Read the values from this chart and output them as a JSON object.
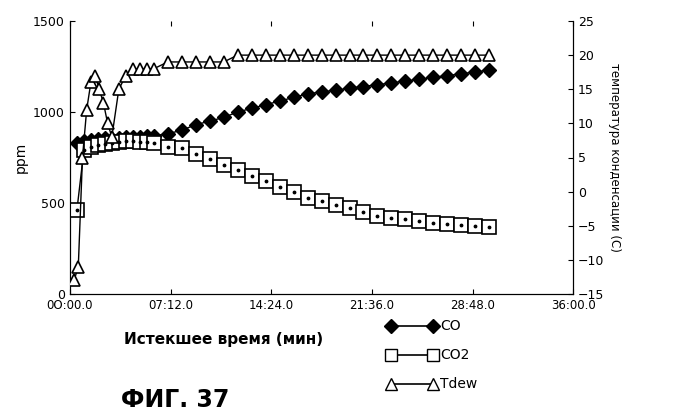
{
  "title": "ФИГ. 37",
  "xlabel": "Истекшее время (мин)",
  "ylabel_left": "ppm",
  "ylabel_right": "температура конденсации (С)",
  "xlim": [
    0,
    36
  ],
  "ylim_left": [
    0,
    1500
  ],
  "ylim_right": [
    -15,
    25
  ],
  "xtick_labels": [
    "0О:00.0",
    "07:12.0",
    "14:24.0",
    "21:36.0",
    "28:48.0",
    "36:00.0"
  ],
  "xtick_positions": [
    0,
    7.2,
    14.4,
    21.6,
    28.8,
    36.0
  ],
  "yticks_left": [
    0,
    500,
    1000,
    1500
  ],
  "yticks_right": [
    -15,
    -10,
    -5,
    0,
    5,
    10,
    15,
    20,
    25
  ],
  "CO_x": [
    0.5,
    1.0,
    1.5,
    2.0,
    2.5,
    3.0,
    3.5,
    4.0,
    4.5,
    5.0,
    5.5,
    6.0,
    7.0,
    8.0,
    9.0,
    10.0,
    11.0,
    12.0,
    13.0,
    14.0,
    15.0,
    16.0,
    17.0,
    18.0,
    19.0,
    20.0,
    21.0,
    22.0,
    23.0,
    24.0,
    25.0,
    26.0,
    27.0,
    28.0,
    29.0,
    30.0
  ],
  "CO_y": [
    830,
    840,
    845,
    850,
    855,
    850,
    855,
    860,
    860,
    865,
    870,
    870,
    880,
    900,
    930,
    950,
    970,
    1000,
    1020,
    1040,
    1060,
    1080,
    1100,
    1110,
    1120,
    1130,
    1140,
    1150,
    1160,
    1170,
    1180,
    1190,
    1200,
    1210,
    1220,
    1230
  ],
  "CO2_x": [
    0.5,
    1.0,
    1.5,
    2.0,
    2.5,
    3.0,
    3.5,
    4.0,
    4.5,
    5.0,
    5.5,
    6.0,
    7.0,
    8.0,
    9.0,
    10.0,
    11.0,
    12.0,
    13.0,
    14.0,
    15.0,
    16.0,
    17.0,
    18.0,
    19.0,
    20.0,
    21.0,
    22.0,
    23.0,
    24.0,
    25.0,
    26.0,
    27.0,
    28.0,
    29.0,
    30.0
  ],
  "CO2_y": [
    460,
    790,
    810,
    820,
    825,
    830,
    835,
    840,
    840,
    835,
    835,
    830,
    810,
    800,
    770,
    740,
    710,
    680,
    650,
    620,
    590,
    560,
    530,
    510,
    490,
    470,
    450,
    430,
    420,
    410,
    400,
    390,
    385,
    380,
    375,
    370
  ],
  "Tdew_x": [
    0.3,
    0.6,
    0.9,
    1.2,
    1.5,
    1.8,
    2.1,
    2.4,
    2.7,
    3.0,
    3.5,
    4.0,
    4.5,
    5.0,
    5.5,
    6.0,
    7.0,
    8.0,
    9.0,
    10.0,
    11.0,
    12.0,
    13.0,
    14.0,
    15.0,
    16.0,
    17.0,
    18.0,
    19.0,
    20.0,
    21.0,
    22.0,
    23.0,
    24.0,
    25.0,
    26.0,
    27.0,
    28.0,
    29.0,
    30.0
  ],
  "Tdew_y": [
    -13,
    -11,
    5,
    12,
    16,
    17,
    15,
    13,
    10,
    8,
    15,
    17,
    18,
    18,
    18,
    18,
    19,
    19,
    19,
    19,
    19,
    20,
    20,
    20,
    20,
    20,
    20,
    20,
    20,
    20,
    20,
    20,
    20,
    20,
    20,
    20,
    20,
    20,
    20,
    20
  ],
  "background_color": "#ffffff"
}
